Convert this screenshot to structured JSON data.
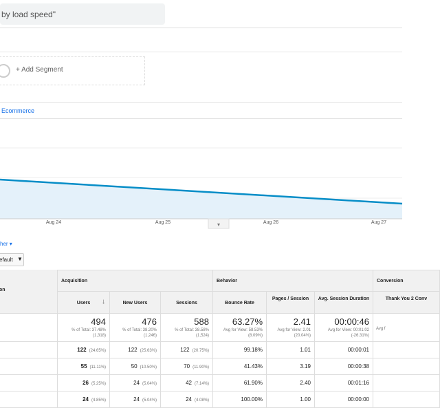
{
  "search": "by load speed\"",
  "segment": "+ Add Segment",
  "tab": "Ecommerce",
  "chart": {
    "x_labels": [
      "Aug 24",
      "Aug 25",
      "Aug 26",
      "Aug 27"
    ]
  },
  "other": "her",
  "dropdown": "efault",
  "table": {
    "dimension": "on",
    "groups": [
      "Acquisition",
      "Behavior",
      "Conversion"
    ],
    "columns": [
      "Users",
      "New Users",
      "Sessions",
      "Bounce Rate",
      "Pages / Session",
      "Avg. Session Duration",
      "Thank You 2 Conv"
    ],
    "totals": [
      {
        "value": "494",
        "note": "% of Total: 37.48%",
        "base": "(1,318)"
      },
      {
        "value": "476",
        "note": "% of Total: 38.20%",
        "base": "(1,246)"
      },
      {
        "value": "588",
        "note": "% of Total: 38.58%",
        "base": "(1,524)"
      },
      {
        "value": "63.27%",
        "note": "Avg for View: 58.53%",
        "base": "(8.09%)"
      },
      {
        "value": "2.41",
        "note": "Avg for View: 2.01",
        "base": "(20.04%)"
      },
      {
        "value": "00:00:46",
        "note": "Avg for View: 00:01:02",
        "base": "(-26.31%)"
      },
      {
        "note": "Avg f"
      }
    ],
    "rows": [
      [
        "122",
        "(24.65%)",
        "122",
        "(25.63%)",
        "122",
        "(20.75%)",
        "99.18%",
        "1.01",
        "00:00:01"
      ],
      [
        "55",
        "(11.11%)",
        "50",
        "(10.50%)",
        "70",
        "(11.90%)",
        "41.43%",
        "3.19",
        "00:00:38"
      ],
      [
        "26",
        "(5.25%)",
        "24",
        "(5.04%)",
        "42",
        "(7.14%)",
        "61.90%",
        "2.40",
        "00:01:16"
      ],
      [
        "24",
        "(4.85%)",
        "24",
        "(5.04%)",
        "24",
        "(4.08%)",
        "100.00%",
        "1.00",
        "00:00:00"
      ]
    ]
  }
}
